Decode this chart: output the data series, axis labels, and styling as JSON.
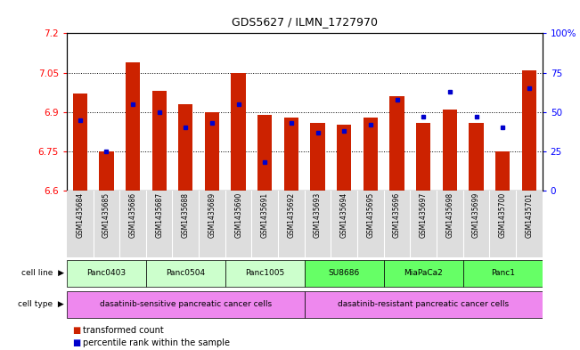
{
  "title": "GDS5627 / ILMN_1727970",
  "samples": [
    "GSM1435684",
    "GSM1435685",
    "GSM1435686",
    "GSM1435687",
    "GSM1435688",
    "GSM1435689",
    "GSM1435690",
    "GSM1435691",
    "GSM1435692",
    "GSM1435693",
    "GSM1435694",
    "GSM1435695",
    "GSM1435696",
    "GSM1435697",
    "GSM1435698",
    "GSM1435699",
    "GSM1435700",
    "GSM1435701"
  ],
  "red_values": [
    6.97,
    6.75,
    7.09,
    6.98,
    6.93,
    6.9,
    7.05,
    6.89,
    6.88,
    6.86,
    6.85,
    6.88,
    6.96,
    6.86,
    6.91,
    6.86,
    6.75,
    7.06
  ],
  "percentile_values": [
    45,
    25,
    55,
    50,
    40,
    43,
    55,
    18,
    43,
    37,
    38,
    42,
    58,
    47,
    63,
    47,
    40,
    65
  ],
  "ylim": [
    6.6,
    7.2
  ],
  "yticks": [
    6.6,
    6.75,
    6.9,
    7.05,
    7.2
  ],
  "ytick_labels": [
    "6.6",
    "6.75",
    "6.9",
    "7.05",
    "7.2"
  ],
  "right_yticks": [
    0,
    25,
    50,
    75,
    100
  ],
  "right_ytick_labels": [
    "0",
    "25",
    "50",
    "75",
    "100%"
  ],
  "grid_values": [
    6.75,
    6.9,
    7.05
  ],
  "cell_lines": [
    {
      "label": "Panc0403",
      "start": 0,
      "end": 2,
      "color": "#ccffcc"
    },
    {
      "label": "Panc0504",
      "start": 3,
      "end": 5,
      "color": "#ccffcc"
    },
    {
      "label": "Panc1005",
      "start": 6,
      "end": 8,
      "color": "#ccffcc"
    },
    {
      "label": "SU8686",
      "start": 9,
      "end": 11,
      "color": "#66ff66"
    },
    {
      "label": "MiaPaCa2",
      "start": 12,
      "end": 14,
      "color": "#66ff66"
    },
    {
      "label": "Panc1",
      "start": 15,
      "end": 17,
      "color": "#66ff66"
    }
  ],
  "cell_type_sensitive": {
    "label": "dasatinib-sensitive pancreatic cancer cells",
    "start": 0,
    "end": 8,
    "color": "#ee88ee"
  },
  "cell_type_resistant": {
    "label": "dasatinib-resistant pancreatic cancer cells",
    "start": 9,
    "end": 17,
    "color": "#ee88ee"
  },
  "bar_color": "#cc2200",
  "dot_color": "#0000cc",
  "base": 6.6,
  "bar_width": 0.55,
  "bg_color": "#dddddd"
}
